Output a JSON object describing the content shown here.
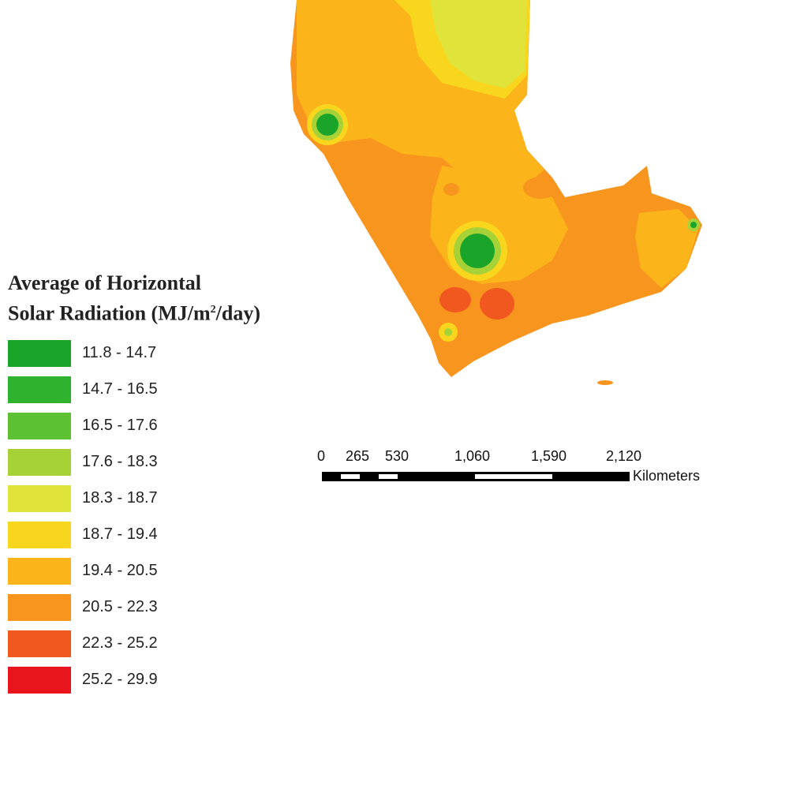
{
  "legend": {
    "title_line1": "Average of Horizontal",
    "title_line2_prefix": "Solar Radiation (MJ/m",
    "title_line2_sup": "2",
    "title_line2_suffix": "/day)",
    "items": [
      {
        "label": "11.8 - 14.7",
        "color": "#1aa52a"
      },
      {
        "label": "14.7 - 16.5",
        "color": "#2fb32f"
      },
      {
        "label": "16.5 - 17.6",
        "color": "#5cc234"
      },
      {
        "label": "17.6 - 18.3",
        "color": "#a6d237"
      },
      {
        "label": "18.3 - 18.7",
        "color": "#e0e33a"
      },
      {
        "label": "18.7 - 19.4",
        "color": "#f8d61e"
      },
      {
        "label": "19.4 - 20.5",
        "color": "#fbb41a"
      },
      {
        "label": "20.5 - 22.3",
        "color": "#f7951e"
      },
      {
        "label": "22.3 - 25.2",
        "color": "#f1581f"
      },
      {
        "label": "25.2 - 29.9",
        "color": "#e8151c"
      }
    ]
  },
  "scale_bar": {
    "ticks": [
      "0",
      "265",
      "530",
      "1,060",
      "1,590",
      "2,120"
    ],
    "unit": "Kilometers"
  },
  "map_colors": {
    "base": "#f7951e",
    "mid": "#fbb41a",
    "light": "#f8d61e",
    "pale": "#e0e33a",
    "green": "#1aa52a",
    "ring": "#a6d237",
    "red": "#f1581f"
  }
}
